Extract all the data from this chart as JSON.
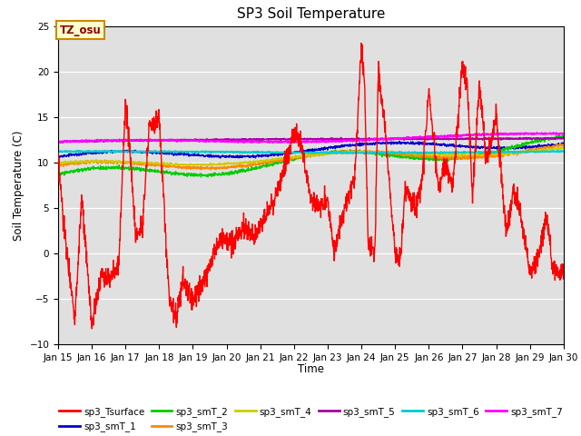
{
  "title": "SP3 Soil Temperature",
  "ylabel": "Soil Temperature (C)",
  "xlabel": "Time",
  "tz_label": "TZ_osu",
  "ylim": [
    -10,
    25
  ],
  "yticks": [
    -10,
    -5,
    0,
    5,
    10,
    15,
    20,
    25
  ],
  "xtick_labels": [
    "Jan 15",
    "Jan 16",
    "Jan 17",
    "Jan 18",
    "Jan 19",
    "Jan 20",
    "Jan 21",
    "Jan 22",
    "Jan 23",
    "Jan 24",
    "Jan 25",
    "Jan 26",
    "Jan 27",
    "Jan 28",
    "Jan 29",
    "Jan 30"
  ],
  "bg_color": "#e0e0e0",
  "fig_bg": "#ffffff",
  "series_colors": {
    "sp3_Tsurface": "#ff0000",
    "sp3_smT_1": "#0000cc",
    "sp3_smT_2": "#00cc00",
    "sp3_smT_3": "#ff8800",
    "sp3_smT_4": "#cccc00",
    "sp3_smT_5": "#aa00aa",
    "sp3_smT_6": "#00cccc",
    "sp3_smT_7": "#ff00ff"
  }
}
